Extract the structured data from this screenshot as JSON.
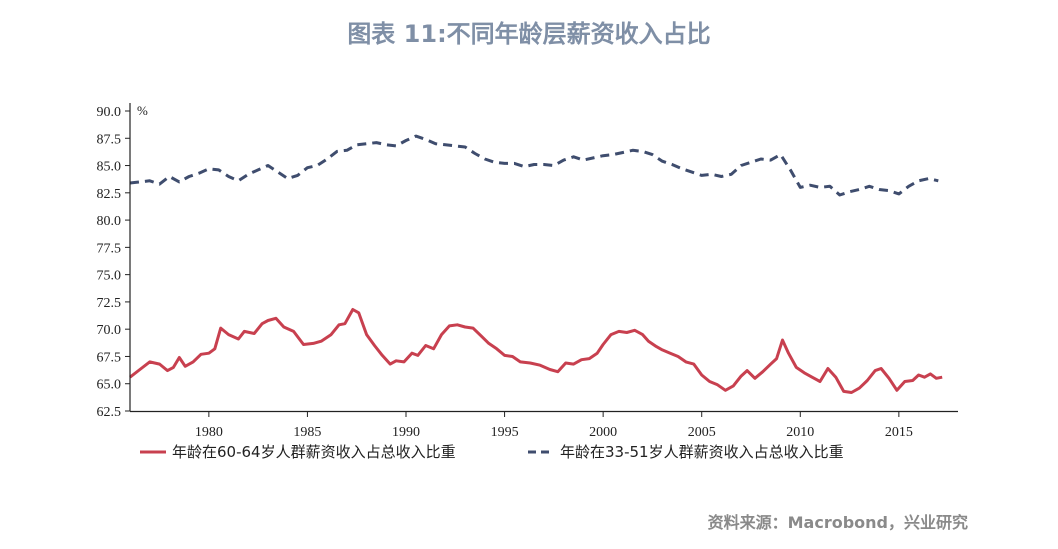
{
  "title": "图表 11:不同年龄层薪资收入占比",
  "source": "资料来源：Macrobond，兴业研究",
  "chart_data": {
    "type": "line",
    "title": "图表 11:不同年龄层薪资收入占比",
    "xlabel": "",
    "ylabel": "%",
    "xlim": [
      1976,
      2018
    ],
    "ylim": [
      62.5,
      90.0
    ],
    "x_ticks": [
      "1980",
      "1985",
      "1990",
      "1995",
      "2000",
      "2005",
      "2010",
      "2015"
    ],
    "y_ticks": [
      "62.5",
      "65.0",
      "67.5",
      "70.0",
      "72.5",
      "75.0",
      "77.5",
      "80.0",
      "82.5",
      "85.0",
      "87.5",
      "90.0"
    ],
    "grid": false,
    "legend_position": "bottom",
    "series": [
      {
        "name": "年龄在60-64岁人群薪资收入占总收入比重",
        "color": "#c8404f",
        "style": "solid",
        "x": [
          1976.0,
          1976.5,
          1977.0,
          1977.5,
          1977.9,
          1978.2,
          1978.5,
          1978.8,
          1979.2,
          1979.6,
          1980.0,
          1980.3,
          1980.6,
          1981.0,
          1981.5,
          1981.8,
          1982.3,
          1982.7,
          1983.0,
          1983.4,
          1983.8,
          1984.3,
          1984.8,
          1985.3,
          1985.7,
          1986.2,
          1986.6,
          1986.9,
          1987.3,
          1987.6,
          1988.0,
          1988.4,
          1988.8,
          1989.2,
          1989.5,
          1989.9,
          1990.3,
          1990.6,
          1991.0,
          1991.4,
          1991.8,
          1992.2,
          1992.6,
          1993.0,
          1993.4,
          1993.8,
          1994.2,
          1994.6,
          1995.0,
          1995.4,
          1995.8,
          1996.3,
          1996.8,
          1997.3,
          1997.7,
          1998.1,
          1998.5,
          1998.9,
          1999.3,
          1999.7,
          2000.0,
          2000.4,
          2000.8,
          2001.2,
          2001.6,
          2002.0,
          2002.3,
          2002.7,
          2003.0,
          2003.4,
          2003.8,
          2004.2,
          2004.6,
          2005.0,
          2005.4,
          2005.8,
          2006.2,
          2006.6,
          2007.0,
          2007.3,
          2007.7,
          2008.1,
          2008.5,
          2008.8,
          2009.1,
          2009.4,
          2009.8,
          2010.2,
          2010.6,
          2011.0,
          2011.4,
          2011.8,
          2012.2,
          2012.6,
          2013.0,
          2013.4,
          2013.8,
          2014.1,
          2014.5,
          2014.9,
          2015.3,
          2015.7,
          2016.0,
          2016.3,
          2016.6,
          2016.9,
          2017.2
        ],
        "values": [
          65.6,
          66.3,
          67.0,
          66.8,
          66.2,
          66.5,
          67.4,
          66.6,
          67.0,
          67.7,
          67.8,
          68.2,
          70.1,
          69.5,
          69.1,
          69.8,
          69.6,
          70.5,
          70.8,
          71.0,
          70.2,
          69.8,
          68.6,
          68.7,
          68.9,
          69.5,
          70.4,
          70.5,
          71.8,
          71.5,
          69.5,
          68.5,
          67.6,
          66.8,
          67.1,
          67.0,
          67.8,
          67.6,
          68.5,
          68.2,
          69.5,
          70.3,
          70.4,
          70.2,
          70.1,
          69.4,
          68.7,
          68.2,
          67.6,
          67.5,
          67.0,
          66.9,
          66.7,
          66.3,
          66.1,
          66.9,
          66.8,
          67.2,
          67.3,
          67.8,
          68.6,
          69.5,
          69.8,
          69.7,
          69.9,
          69.5,
          68.9,
          68.4,
          68.1,
          67.8,
          67.5,
          67.0,
          66.8,
          65.8,
          65.2,
          64.9,
          64.4,
          64.8,
          65.7,
          66.2,
          65.5,
          66.1,
          66.8,
          67.3,
          69.0,
          67.8,
          66.5,
          66.0,
          65.6,
          65.2,
          66.4,
          65.6,
          64.3,
          64.2,
          64.6,
          65.3,
          66.2,
          66.4,
          65.5,
          64.4,
          65.2,
          65.3,
          65.8,
          65.6,
          65.9,
          65.5,
          65.6
        ]
      },
      {
        "name": "年龄在33-51岁人群薪资收入占总收入比重",
        "color": "#3f4d6e",
        "style": "dashed",
        "x": [
          1976.0,
          1976.5,
          1977.0,
          1977.5,
          1978.0,
          1978.5,
          1979.0,
          1979.5,
          1980.0,
          1980.5,
          1981.0,
          1981.5,
          1982.0,
          1982.5,
          1983.0,
          1983.5,
          1984.0,
          1984.5,
          1985.0,
          1985.5,
          1986.0,
          1986.5,
          1987.0,
          1987.5,
          1988.0,
          1988.5,
          1989.0,
          1989.5,
          1990.0,
          1990.5,
          1991.0,
          1991.5,
          1992.0,
          1992.5,
          1993.0,
          1993.5,
          1994.0,
          1994.5,
          1995.0,
          1995.5,
          1996.0,
          1996.5,
          1997.0,
          1997.5,
          1998.0,
          1998.5,
          1999.0,
          1999.5,
          2000.0,
          2000.5,
          2001.0,
          2001.5,
          2002.0,
          2002.5,
          2003.0,
          2003.5,
          2004.0,
          2004.5,
          2005.0,
          2005.5,
          2006.0,
          2006.5,
          2007.0,
          2007.5,
          2008.0,
          2008.5,
          2009.0,
          2009.5,
          2010.0,
          2010.5,
          2011.0,
          2011.5,
          2012.0,
          2012.5,
          2013.0,
          2013.5,
          2014.0,
          2014.5,
          2015.0,
          2015.5,
          2016.0,
          2016.5,
          2017.0
        ],
        "values": [
          83.4,
          83.5,
          83.6,
          83.3,
          84.0,
          83.5,
          84.0,
          84.3,
          84.7,
          84.6,
          84.0,
          83.6,
          84.2,
          84.6,
          85.0,
          84.4,
          83.8,
          84.1,
          84.8,
          85.0,
          85.6,
          86.3,
          86.4,
          86.9,
          87.0,
          87.1,
          86.9,
          86.8,
          87.3,
          87.7,
          87.4,
          87.0,
          86.9,
          86.8,
          86.7,
          86.1,
          85.6,
          85.3,
          85.2,
          85.2,
          84.9,
          85.1,
          85.1,
          85.0,
          85.5,
          85.8,
          85.5,
          85.7,
          85.9,
          86.0,
          86.2,
          86.4,
          86.3,
          86.0,
          85.4,
          85.1,
          84.7,
          84.4,
          84.1,
          84.2,
          84.0,
          84.2,
          85.0,
          85.3,
          85.6,
          85.5,
          86.0,
          84.6,
          83.0,
          83.2,
          83.0,
          83.1,
          82.3,
          82.6,
          82.8,
          83.1,
          82.8,
          82.7,
          82.4,
          83.1,
          83.6,
          83.8,
          83.6
        ]
      }
    ]
  }
}
